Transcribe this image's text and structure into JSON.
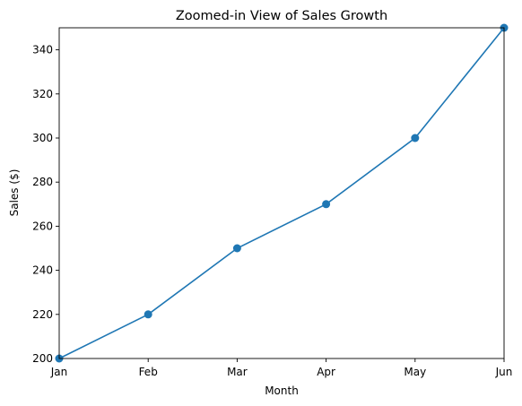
{
  "chart_data": {
    "type": "line",
    "title": "Zoomed-in View of Sales Growth",
    "xlabel": "Month",
    "ylabel": "Sales ($)",
    "categories": [
      "Jan",
      "Feb",
      "Mar",
      "Apr",
      "May",
      "Jun"
    ],
    "series": [
      {
        "values": [
          200,
          220,
          250,
          270,
          300,
          350
        ],
        "color": "#1f77b4",
        "marker": "circle"
      }
    ],
    "ylim": [
      200,
      350
    ],
    "yticks": [
      200,
      220,
      240,
      260,
      280,
      300,
      320,
      340
    ],
    "grid": false,
    "legend": "none"
  }
}
